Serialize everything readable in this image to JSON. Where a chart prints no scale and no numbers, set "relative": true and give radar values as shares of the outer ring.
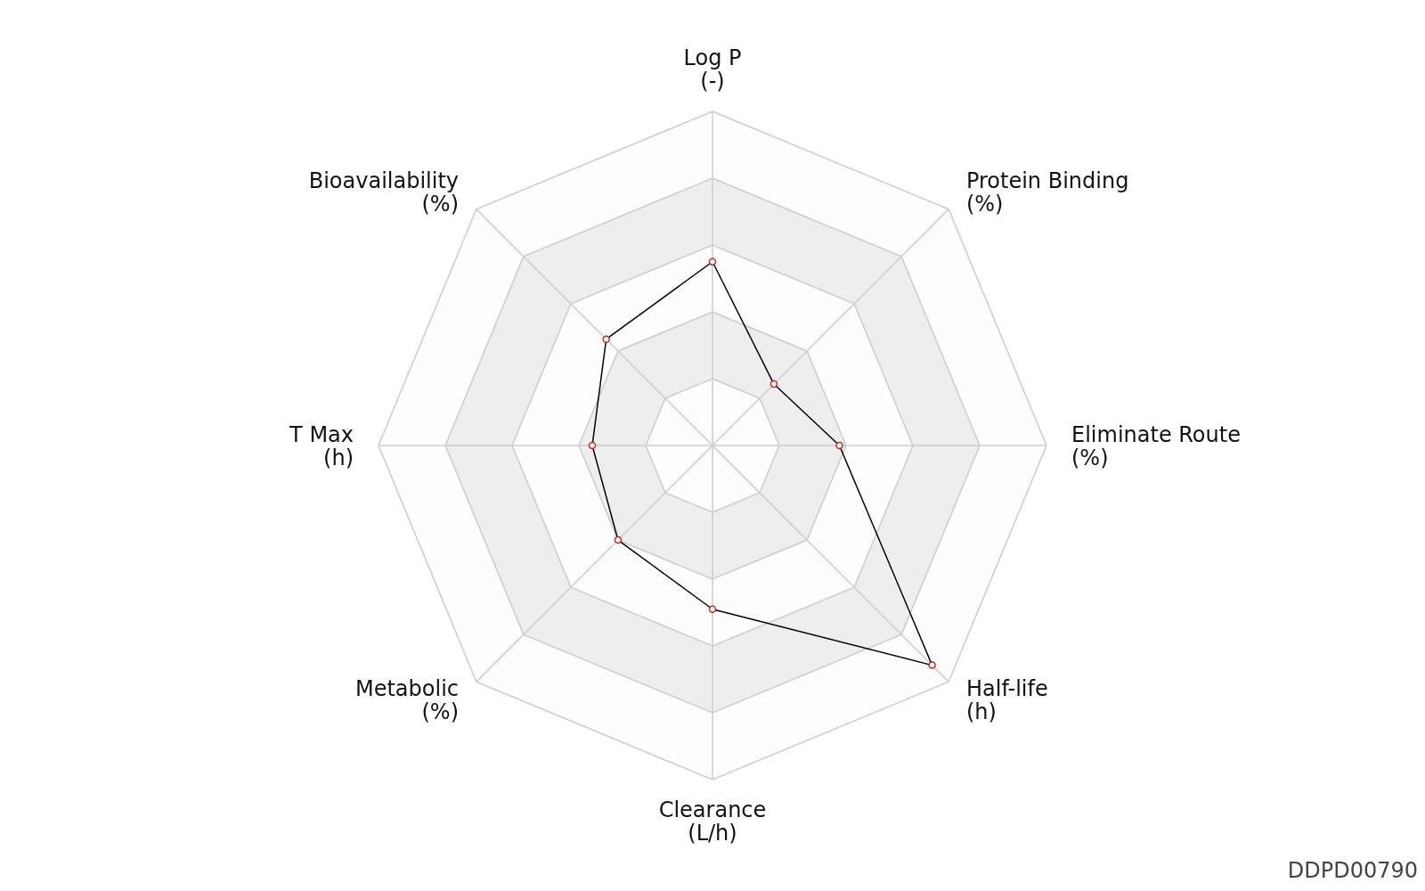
{
  "chart_data": {
    "type": "radar",
    "relative": true,
    "categories": [
      "Log P\n(-)",
      "Protein Binding\n(%)",
      "Eliminate Route\n(%)",
      "Half-life\n(h)",
      "Clearance\n(L/h)",
      "Metabolic\n(%)",
      "T Max\n(h)",
      "Bioavailability\n(%)"
    ],
    "series": [
      {
        "color": "#000000",
        "values": [
          0.55,
          0.26,
          0.38,
          0.93,
          0.49,
          0.4,
          0.36,
          0.45
        ]
      }
    ],
    "marker": "circle",
    "grid": true,
    "annotations": [
      "DDPD00790"
    ]
  }
}
